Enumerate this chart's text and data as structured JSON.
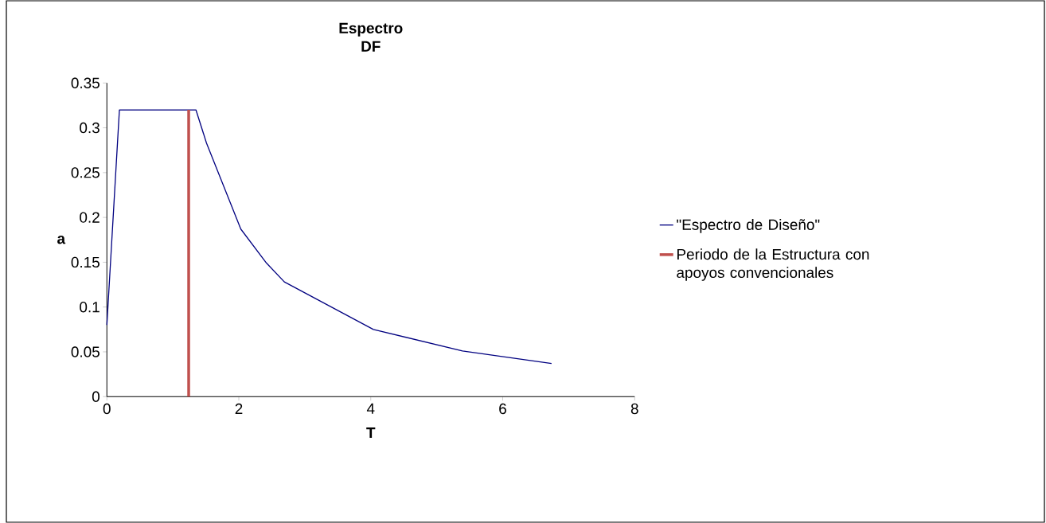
{
  "chart_data": {
    "type": "line",
    "title": "Espectro DF",
    "xlabel": "T",
    "ylabel": "a",
    "xlim": [
      0,
      8
    ],
    "xticks": [
      0,
      2,
      4,
      6,
      8
    ],
    "ylim": [
      0,
      0.35
    ],
    "yticks": [
      0,
      0.05,
      0.1,
      0.15,
      0.2,
      0.25,
      0.3,
      0.35
    ],
    "grid": false,
    "legend": "right",
    "marker": "none",
    "series": [
      {
        "name": "\"Espectro de Diseño\"",
        "color": "#000080",
        "x": [
          0,
          0.19,
          1.35,
          1.51,
          2.03,
          2.42,
          2.69,
          4.04,
          5.39,
          6.74
        ],
        "values": [
          0.08,
          0.32,
          0.32,
          0.283,
          0.187,
          0.149,
          0.128,
          0.075,
          0.051,
          0.037
        ]
      },
      {
        "name": "Periodo de la Estructura con apoyos convencionales",
        "color": "#c0504d",
        "x": [
          1.24,
          1.24
        ],
        "values": [
          0,
          0.32
        ]
      }
    ]
  }
}
